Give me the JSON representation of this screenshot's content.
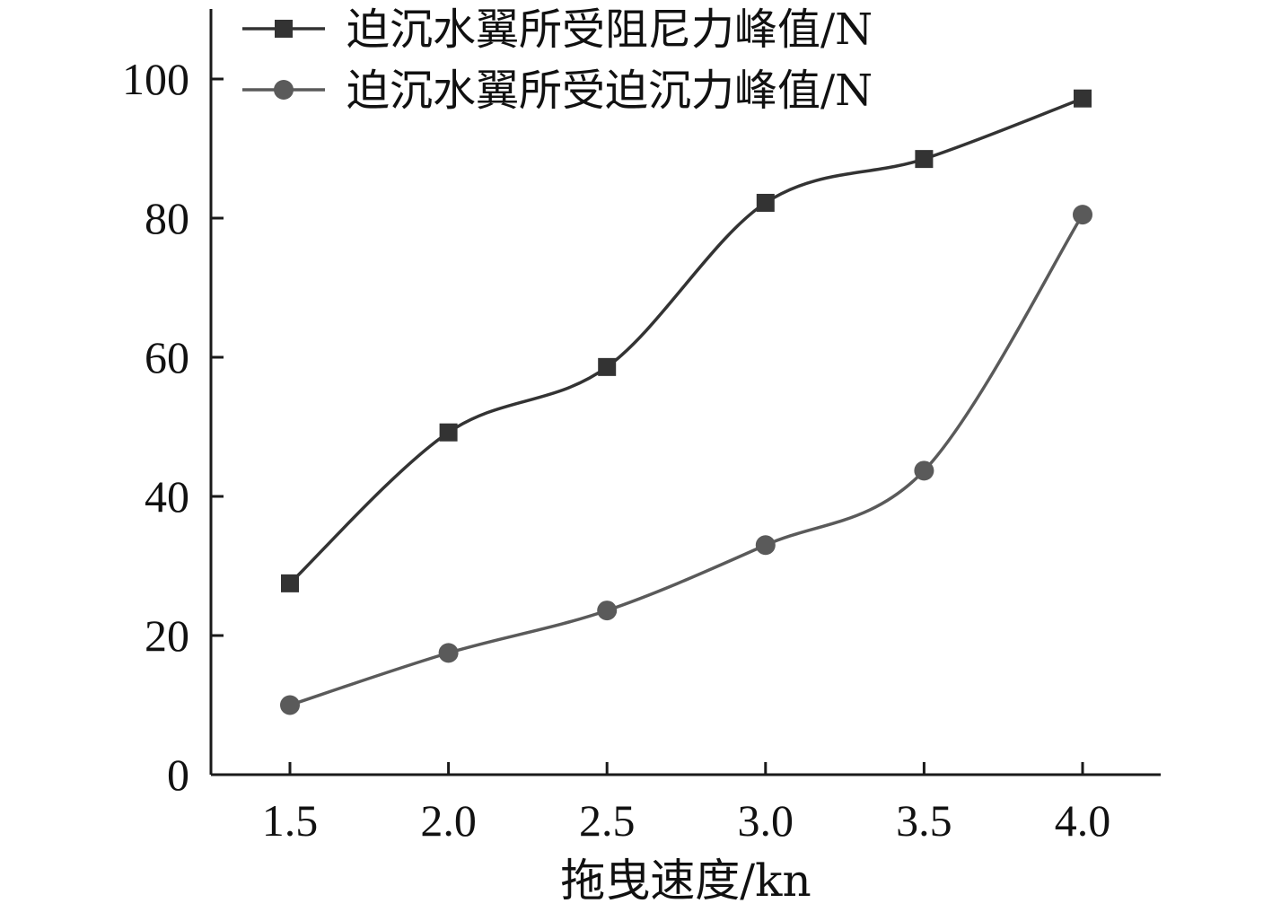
{
  "chart_data": {
    "type": "line",
    "x": [
      1.5,
      2.0,
      2.5,
      3.0,
      3.5,
      4.0
    ],
    "x_tick_labels": [
      "1.5",
      "2.0",
      "2.5",
      "3.0",
      "3.5",
      "4.0"
    ],
    "y_ticks": [
      0,
      20,
      40,
      60,
      80,
      100
    ],
    "y_tick_labels": [
      "0",
      "20",
      "40",
      "60",
      "80",
      "100"
    ],
    "xlim": [
      1.25,
      4.25
    ],
    "ylim": [
      0,
      110
    ],
    "xlabel": "拖曳速度/kn",
    "ylabel": "",
    "legend_position": "top",
    "grid": false,
    "series": [
      {
        "name": "迫沉水翼所受阻尼力峰值/N",
        "values": [
          27.5,
          49.2,
          58.6,
          82.2,
          88.5,
          97.2
        ],
        "marker": "square",
        "color": "#333333"
      },
      {
        "name": "迫沉水翼所受迫沉力峰值/N",
        "values": [
          10.0,
          17.5,
          23.6,
          33.0,
          43.7,
          80.5
        ],
        "marker": "circle",
        "color": "#5a5a5a"
      }
    ]
  }
}
